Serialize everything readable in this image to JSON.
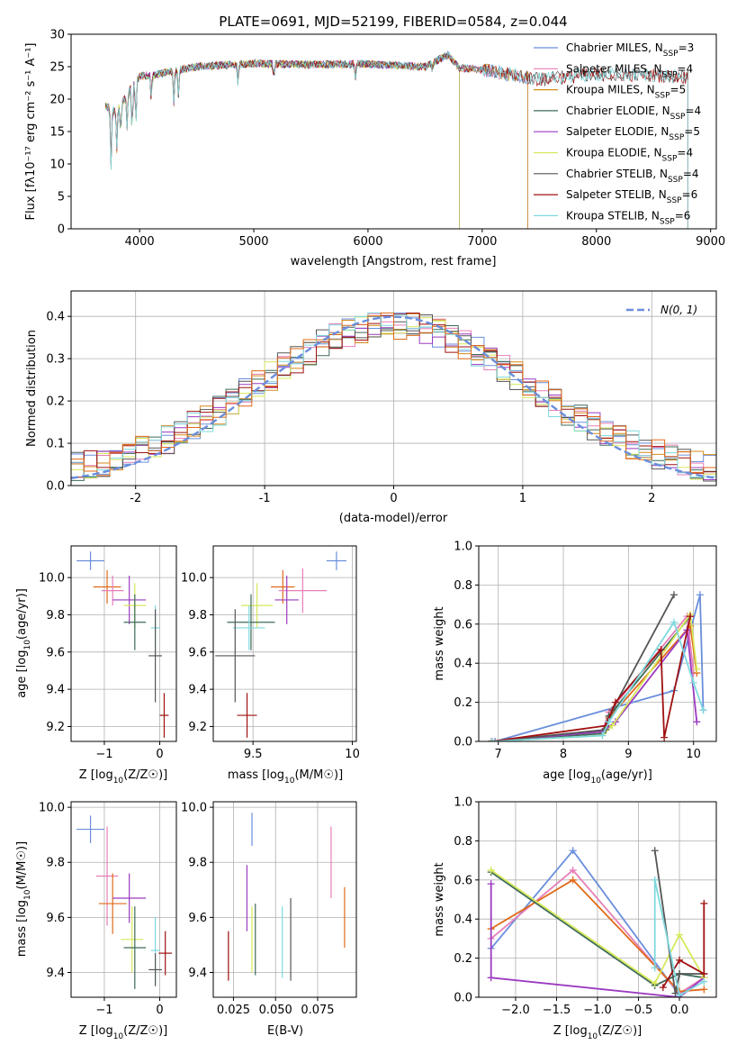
{
  "title": "PLATE=0691, MJD=52199, FIBERID=0584, z=0.044",
  "colors": {
    "chabrier_miles": "#6a8edc",
    "salpeter_miles": "#e67fb8",
    "kroupa_miles": "#d4891a",
    "chabrier_elodie": "#3d6b58",
    "salpeter_elodie": "#9b3ac0",
    "kroupa_elodie": "#d7e85a",
    "chabrier_stelib": "#555555",
    "salpeter_stelib": "#a01010",
    "kroupa_stelib": "#7ed8de",
    "orange_alt": "#e06a1a",
    "normal_curve": "#6a8edc"
  },
  "legend_main": [
    {
      "base": "Chabrier MILES, N",
      "sub": "SSP",
      "tail": "=3",
      "color": "#6a8edc"
    },
    {
      "base": "Salpeter MILES, N",
      "sub": "SSP",
      "tail": "=4",
      "color": "#e67fb8"
    },
    {
      "base": "Kroupa MILES, N",
      "sub": "SSP",
      "tail": "=5",
      "color": "#d4891a"
    },
    {
      "base": "Chabrier ELODIE, N",
      "sub": "SSP",
      "tail": "=4",
      "color": "#3d6b58"
    },
    {
      "base": "Salpeter ELODIE, N",
      "sub": "SSP",
      "tail": "=5",
      "color": "#9b3ac0"
    },
    {
      "base": "Kroupa ELODIE, N",
      "sub": "SSP",
      "tail": "=4",
      "color": "#d7e85a"
    },
    {
      "base": "Chabrier STELIB, N",
      "sub": "SSP",
      "tail": "=4",
      "color": "#555555"
    },
    {
      "base": "Salpeter STELIB, N",
      "sub": "SSP",
      "tail": "=6",
      "color": "#a01010"
    },
    {
      "base": "Kroupa STELIB, N",
      "sub": "SSP",
      "tail": "=6",
      "color": "#7ed8de"
    }
  ],
  "chart_data": [
    {
      "id": "spectrum",
      "type": "line",
      "xlabel": "wavelength [Angstrom, rest frame]",
      "ylabel": "Flux [fλ10⁻¹⁷ erg cm⁻² s⁻¹ A⁻¹]",
      "xlim": [
        3400,
        9050
      ],
      "ylim": [
        0,
        30
      ],
      "xticks": [
        4000,
        5000,
        6000,
        7000,
        8000,
        9000
      ],
      "yticks": [
        0,
        5,
        10,
        15,
        20,
        25,
        30
      ],
      "series": [
        {
          "name": "Chabrier MILES",
          "x_range": [
            3700,
            7400
          ]
        },
        {
          "name": "Salpeter MILES",
          "x_range": [
            3700,
            7400
          ]
        },
        {
          "name": "Kroupa MILES",
          "x_range": [
            3700,
            7400
          ]
        },
        {
          "name": "Chabrier ELODIE",
          "x_range": [
            3700,
            6800
          ]
        },
        {
          "name": "Salpeter ELODIE",
          "x_range": [
            3700,
            6800
          ]
        },
        {
          "name": "Kroupa ELODIE",
          "x_range": [
            3700,
            6800
          ]
        },
        {
          "name": "Chabrier STELIB",
          "x_range": [
            3700,
            8800
          ]
        },
        {
          "name": "Salpeter STELIB",
          "x_range": [
            3700,
            8800
          ]
        },
        {
          "name": "Kroupa STELIB",
          "x_range": [
            3700,
            8800
          ]
        }
      ],
      "continuum": [
        [
          3700,
          19
        ],
        [
          3800,
          18
        ],
        [
          3900,
          21
        ],
        [
          4000,
          23.5
        ],
        [
          4200,
          24
        ],
        [
          4500,
          25
        ],
        [
          5000,
          25.5
        ],
        [
          5500,
          25.3
        ],
        [
          6000,
          25.4
        ],
        [
          6500,
          25
        ],
        [
          6700,
          26.8
        ],
        [
          6800,
          24.8
        ],
        [
          7000,
          24.5
        ],
        [
          7500,
          23
        ],
        [
          8000,
          23.8
        ],
        [
          8500,
          23.7
        ],
        [
          8800,
          23.3
        ]
      ]
    },
    {
      "id": "residuals",
      "type": "histogram",
      "xlabel": "(data-model)/error",
      "ylabel": "Normed distribution",
      "xlim": [
        -2.5,
        2.5
      ],
      "ylim": [
        0,
        0.46
      ],
      "xticks": [
        -2,
        -1,
        0,
        1,
        2
      ],
      "yticks": [
        0.0,
        0.1,
        0.2,
        0.3,
        0.4
      ],
      "bin_width": 0.1,
      "normal_label": "N(0, 1)"
    },
    {
      "id": "age_vs_z",
      "type": "scatter",
      "xlabel_base": "Z [log",
      "xlabel_sub": "10",
      "xlabel_tail": "(Z/Z☉)]",
      "ylabel_base": "age  [log",
      "ylabel_sub": "10",
      "ylabel_tail": "(age/yr)]",
      "xlim": [
        -1.6,
        0.3
      ],
      "ylim": [
        9.12,
        10.17
      ],
      "xticks": [
        -1,
        0
      ],
      "yticks": [
        9.2,
        9.4,
        9.6,
        9.8,
        10.0
      ],
      "points": [
        {
          "x": -1.25,
          "y": 10.09,
          "xerr": 0.25,
          "yerr": 0.05,
          "color": "#6a8edc"
        },
        {
          "x": -0.95,
          "y": 9.95,
          "xerr": 0.25,
          "yerr": 0.09,
          "color": "#e06a1a"
        },
        {
          "x": -0.85,
          "y": 9.93,
          "xerr": 0.2,
          "yerr": 0.08,
          "color": "#e67fb8"
        },
        {
          "x": -0.55,
          "y": 9.88,
          "xerr": 0.3,
          "yerr": 0.13,
          "color": "#9b3ac0"
        },
        {
          "x": -0.45,
          "y": 9.85,
          "xerr": 0.2,
          "yerr": 0.12,
          "color": "#d7e85a"
        },
        {
          "x": -0.45,
          "y": 9.76,
          "xerr": 0.2,
          "yerr": 0.15,
          "color": "#3d6b58"
        },
        {
          "x": -0.08,
          "y": 9.73,
          "xerr": 0.08,
          "yerr": 0.12,
          "color": "#7ed8de"
        },
        {
          "x": -0.08,
          "y": 9.58,
          "xerr": 0.12,
          "yerr": 0.25,
          "color": "#555555"
        },
        {
          "x": 0.08,
          "y": 9.26,
          "xerr": 0.08,
          "yerr": 0.12,
          "color": "#a01010"
        }
      ]
    },
    {
      "id": "age_vs_mass",
      "type": "scatter",
      "xlabel_base": "mass [log",
      "xlabel_sub": "10",
      "xlabel_tail": "(M/M☉)]",
      "xlim": [
        9.3,
        10.02
      ],
      "ylim": [
        9.12,
        10.17
      ],
      "xticks": [
        9.5,
        10.0
      ],
      "yticks": [
        9.2,
        9.4,
        9.6,
        9.8,
        10.0
      ],
      "points": [
        {
          "x": 9.92,
          "y": 10.09,
          "xerr": 0.05,
          "yerr": 0.05,
          "color": "#6a8edc"
        },
        {
          "x": 9.65,
          "y": 9.95,
          "xerr": 0.06,
          "yerr": 0.09,
          "color": "#e06a1a"
        },
        {
          "x": 9.75,
          "y": 9.93,
          "xerr": 0.12,
          "yerr": 0.12,
          "color": "#e67fb8"
        },
        {
          "x": 9.67,
          "y": 9.88,
          "xerr": 0.06,
          "yerr": 0.13,
          "color": "#9b3ac0"
        },
        {
          "x": 9.52,
          "y": 9.85,
          "xerr": 0.08,
          "yerr": 0.12,
          "color": "#d7e85a"
        },
        {
          "x": 9.49,
          "y": 9.76,
          "xerr": 0.12,
          "yerr": 0.15,
          "color": "#3d6b58"
        },
        {
          "x": 9.48,
          "y": 9.73,
          "xerr": 0.08,
          "yerr": 0.12,
          "color": "#7ed8de"
        },
        {
          "x": 9.41,
          "y": 9.58,
          "xerr": 0.1,
          "yerr": 0.25,
          "color": "#555555"
        },
        {
          "x": 9.47,
          "y": 9.26,
          "xerr": 0.05,
          "yerr": 0.12,
          "color": "#a01010"
        }
      ]
    },
    {
      "id": "weight_vs_age",
      "type": "line",
      "xlabel_base": "age  [log",
      "xlabel_sub": "10",
      "xlabel_tail": "(age/yr)]",
      "ylabel": "mass weight",
      "xlim": [
        6.7,
        10.35
      ],
      "ylim": [
        0,
        1.0
      ],
      "xticks": [
        7,
        8,
        9,
        10
      ],
      "yticks": [
        0.0,
        0.2,
        0.4,
        0.6,
        0.8,
        1.0
      ],
      "series": [
        {
          "color": "#6a8edc",
          "x": [
            6.95,
            9.7,
            10.1,
            10.15
          ],
          "y": [
            0.0,
            0.26,
            0.75,
            0.16
          ]
        },
        {
          "color": "#e67fb8",
          "x": [
            6.9,
            8.6,
            8.7,
            9.9,
            10.0
          ],
          "y": [
            0.0,
            0.05,
            0.15,
            0.64,
            0.35
          ]
        },
        {
          "color": "#e06a1a",
          "x": [
            6.9,
            8.6,
            8.7,
            9.95,
            10.05
          ],
          "y": [
            0.0,
            0.05,
            0.12,
            0.59,
            0.35
          ]
        },
        {
          "color": "#3d6b58",
          "x": [
            6.9,
            8.6,
            8.7,
            9.95
          ],
          "y": [
            0.0,
            0.04,
            0.13,
            0.64
          ]
        },
        {
          "color": "#9b3ac0",
          "x": [
            6.9,
            8.6,
            8.8,
            9.9,
            10.05
          ],
          "y": [
            0.0,
            0.05,
            0.1,
            0.57,
            0.1
          ]
        },
        {
          "color": "#d7e85a",
          "x": [
            6.9,
            8.6,
            8.75,
            9.95,
            10.05
          ],
          "y": [
            0.0,
            0.03,
            0.08,
            0.65,
            0.37
          ]
        },
        {
          "color": "#555555",
          "x": [
            6.9,
            8.65,
            8.75,
            9.7
          ],
          "y": [
            0.0,
            0.06,
            0.16,
            0.75
          ]
        },
        {
          "color": "#a01010",
          "x": [
            6.9,
            8.65,
            8.8,
            9.5,
            9.55,
            9.95
          ],
          "y": [
            0.0,
            0.08,
            0.2,
            0.47,
            0.02,
            0.64
          ]
        },
        {
          "color": "#7ed8de",
          "x": [
            6.9,
            8.6,
            8.7,
            9.7,
            10.0,
            10.15
          ],
          "y": [
            0.0,
            0.03,
            0.1,
            0.61,
            0.3,
            0.16
          ]
        }
      ]
    },
    {
      "id": "mass_vs_z",
      "type": "scatter",
      "xlabel_base": "Z [log",
      "xlabel_sub": "10",
      "xlabel_tail": "(Z/Z☉)]",
      "ylabel_base": "mass [log",
      "ylabel_sub": "10",
      "ylabel_tail": "(M/M☉)]",
      "xlim": [
        -1.6,
        0.3
      ],
      "ylim": [
        9.31,
        10.02
      ],
      "xticks": [
        -1,
        0
      ],
      "yticks": [
        9.4,
        9.6,
        9.8,
        10.0
      ],
      "points": [
        {
          "x": -1.25,
          "y": 9.92,
          "xerr": 0.25,
          "yerr": 0.05,
          "color": "#6a8edc"
        },
        {
          "x": -0.95,
          "y": 9.75,
          "xerr": 0.2,
          "yerr": 0.18,
          "color": "#e67fb8"
        },
        {
          "x": -0.85,
          "y": 9.65,
          "xerr": 0.25,
          "yerr": 0.11,
          "color": "#e06a1a"
        },
        {
          "x": -0.55,
          "y": 9.67,
          "xerr": 0.3,
          "yerr": 0.09,
          "color": "#9b3ac0"
        },
        {
          "x": -0.5,
          "y": 9.52,
          "xerr": 0.2,
          "yerr": 0.12,
          "color": "#d7e85a"
        },
        {
          "x": -0.45,
          "y": 9.49,
          "xerr": 0.2,
          "yerr": 0.15,
          "color": "#3d6b58"
        },
        {
          "x": -0.08,
          "y": 9.48,
          "xerr": 0.08,
          "yerr": 0.12,
          "color": "#7ed8de"
        },
        {
          "x": -0.08,
          "y": 9.41,
          "xerr": 0.12,
          "yerr": 0.06,
          "color": "#555555"
        },
        {
          "x": 0.1,
          "y": 9.47,
          "xerr": 0.12,
          "yerr": 0.08,
          "color": "#a01010"
        }
      ]
    },
    {
      "id": "mass_vs_ebv",
      "type": "scatter",
      "xlabel": "E(B-V)",
      "xlim": [
        0.013,
        0.098
      ],
      "ylim": [
        9.31,
        10.02
      ],
      "xticks": [
        0.025,
        0.05,
        0.075
      ],
      "xtick_labels": [
        "0.025",
        "0.050",
        "0.075"
      ],
      "yticks": [
        9.4,
        9.6,
        9.8,
        10.0
      ],
      "points": [
        {
          "x": 0.036,
          "y": 9.92,
          "xerr": 0.0,
          "yerr": 0.06,
          "color": "#6a8edc"
        },
        {
          "x": 0.083,
          "y": 9.8,
          "xerr": 0.0,
          "yerr": 0.13,
          "color": "#e67fb8"
        },
        {
          "x": 0.091,
          "y": 9.6,
          "xerr": 0.0,
          "yerr": 0.11,
          "color": "#e06a1a"
        },
        {
          "x": 0.033,
          "y": 9.67,
          "xerr": 0.0,
          "yerr": 0.12,
          "color": "#9b3ac0"
        },
        {
          "x": 0.036,
          "y": 9.52,
          "xerr": 0.0,
          "yerr": 0.12,
          "color": "#d7e85a"
        },
        {
          "x": 0.038,
          "y": 9.52,
          "xerr": 0.0,
          "yerr": 0.13,
          "color": "#3d6b58"
        },
        {
          "x": 0.054,
          "y": 9.51,
          "xerr": 0.0,
          "yerr": 0.13,
          "color": "#7ed8de"
        },
        {
          "x": 0.059,
          "y": 9.52,
          "xerr": 0.0,
          "yerr": 0.15,
          "color": "#555555"
        },
        {
          "x": 0.022,
          "y": 9.46,
          "xerr": 0.0,
          "yerr": 0.09,
          "color": "#a01010"
        }
      ]
    },
    {
      "id": "weight_vs_z",
      "type": "line",
      "xlabel_base": "Z [log",
      "xlabel_sub": "10",
      "xlabel_tail": "(Z/Z☉)]",
      "ylabel": "mass weight",
      "xlim": [
        -2.45,
        0.45
      ],
      "ylim": [
        0,
        1.0
      ],
      "xticks": [
        -2.0,
        -1.5,
        -1.0,
        -0.5,
        0.0
      ],
      "xtick_labels": [
        "−2.0",
        "−1.5",
        "−1.0",
        "−0.5",
        "0.0"
      ],
      "yticks": [
        0.0,
        0.2,
        0.4,
        0.6,
        0.8,
        1.0
      ],
      "series": [
        {
          "color": "#6a8edc",
          "x": [
            -2.3,
            -1.3,
            0.0,
            0.3
          ],
          "y": [
            0.25,
            0.75,
            0.01,
            0.1
          ]
        },
        {
          "color": "#e67fb8",
          "x": [
            -2.3,
            -1.3,
            0.0,
            0.3
          ],
          "y": [
            0.3,
            0.65,
            0.02,
            0.1
          ]
        },
        {
          "color": "#e06a1a",
          "x": [
            -2.3,
            -1.3,
            0.0,
            0.3
          ],
          "y": [
            0.35,
            0.6,
            0.03,
            0.04
          ]
        },
        {
          "color": "#3d6b58",
          "x": [
            -2.3,
            -0.3,
            0.0,
            0.3
          ],
          "y": [
            0.64,
            0.06,
            0.12,
            0.1
          ]
        },
        {
          "color": "#9b3ac0",
          "x": [
            -2.3,
            -2.3,
            0.0,
            0.3
          ],
          "y": [
            0.58,
            0.1,
            0.0,
            0.1
          ]
        },
        {
          "color": "#d7e85a",
          "x": [
            -2.3,
            -0.3,
            0.0,
            0.3
          ],
          "y": [
            0.65,
            0.07,
            0.32,
            0.1
          ]
        },
        {
          "color": "#555555",
          "x": [
            -0.3,
            -0.05,
            0.0,
            0.3
          ],
          "y": [
            0.75,
            0.02,
            0.12,
            0.12
          ]
        },
        {
          "color": "#a01010",
          "x": [
            -0.2,
            0.0,
            0.3,
            0.3
          ],
          "y": [
            0.05,
            0.19,
            0.12,
            0.48
          ]
        },
        {
          "color": "#7ed8de",
          "x": [
            -0.3,
            -0.3,
            0.0,
            0.3
          ],
          "y": [
            0.15,
            0.6,
            0.01,
            0.08
          ]
        }
      ]
    }
  ]
}
